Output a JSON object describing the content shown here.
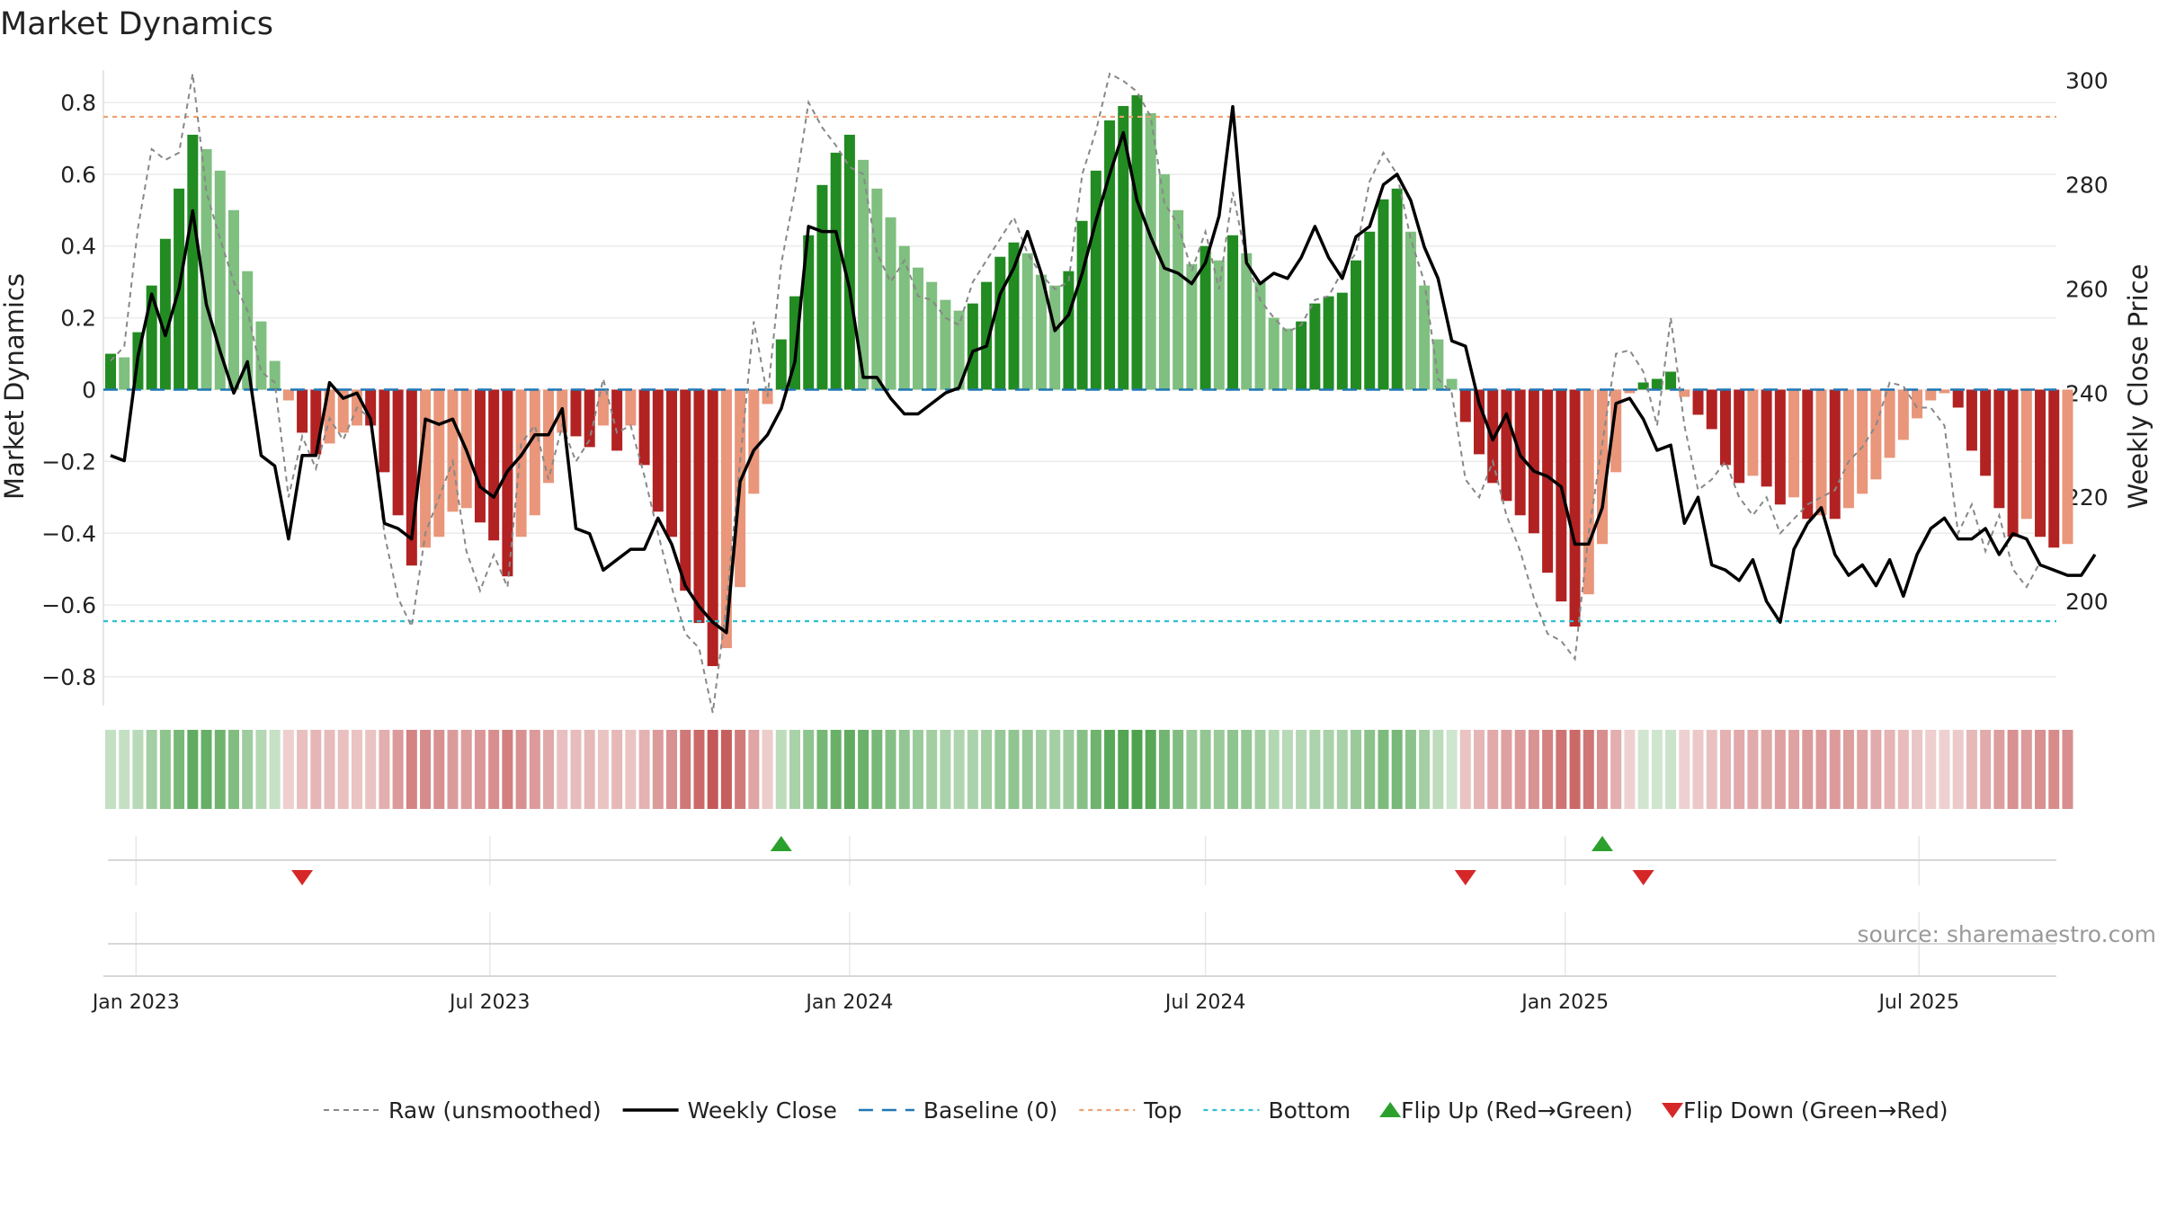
{
  "chart_data": {
    "type": "bar",
    "title": "Market Dynamics",
    "ylabel_left": "Market Dynamics",
    "ylabel_right": "Weekly Close Price",
    "ylim_left": [
      -0.88,
      0.89
    ],
    "ylim_right": [
      180,
      302
    ],
    "yticks_left": [
      {
        "v": 0.8,
        "t": "0.8"
      },
      {
        "v": 0.6,
        "t": "0.6"
      },
      {
        "v": 0.4,
        "t": "0.4"
      },
      {
        "v": 0.2,
        "t": "0.2"
      },
      {
        "v": 0,
        "t": "0"
      },
      {
        "v": -0.2,
        "t": "−0.2"
      },
      {
        "v": -0.4,
        "t": "−0.4"
      },
      {
        "v": -0.6,
        "t": "−0.6"
      },
      {
        "v": -0.8,
        "t": "−0.8"
      }
    ],
    "yticks_right": [
      {
        "v": 300,
        "t": "300"
      },
      {
        "v": 280,
        "t": "280"
      },
      {
        "v": 260,
        "t": "260"
      },
      {
        "v": 240,
        "t": "240"
      },
      {
        "v": 220,
        "t": "220"
      },
      {
        "v": 200,
        "t": "200"
      }
    ],
    "x_start": "2022-12-19",
    "x_ticks": [
      {
        "date": "2023-01-01",
        "t": "Jan 2023"
      },
      {
        "date": "2023-07-01",
        "t": "Jul 2023"
      },
      {
        "date": "2024-01-01",
        "t": "Jan 2024"
      },
      {
        "date": "2024-07-01",
        "t": "Jul 2024"
      },
      {
        "date": "2025-01-01",
        "t": "Jan 2025"
      },
      {
        "date": "2025-07-01",
        "t": "Jul 2025"
      }
    ],
    "top": 0.76,
    "bottom": -0.645,
    "baseline": 0,
    "dynamics": [
      0.1,
      0.09,
      0.16,
      0.29,
      0.42,
      0.56,
      0.71,
      0.67,
      0.61,
      0.5,
      0.33,
      0.19,
      0.08,
      -0.03,
      -0.12,
      -0.18,
      -0.15,
      -0.12,
      -0.1,
      -0.1,
      -0.23,
      -0.35,
      -0.49,
      -0.44,
      -0.41,
      -0.34,
      -0.33,
      -0.37,
      -0.42,
      -0.52,
      -0.41,
      -0.35,
      -0.26,
      -0.12,
      -0.13,
      -0.16,
      -0.1,
      -0.17,
      -0.1,
      -0.21,
      -0.34,
      -0.41,
      -0.56,
      -0.65,
      -0.77,
      -0.72,
      -0.55,
      -0.29,
      -0.04,
      0.14,
      0.26,
      0.43,
      0.57,
      0.66,
      0.71,
      0.64,
      0.56,
      0.48,
      0.4,
      0.34,
      0.3,
      0.25,
      0.22,
      0.24,
      0.3,
      0.37,
      0.41,
      0.38,
      0.32,
      0.29,
      0.33,
      0.47,
      0.61,
      0.75,
      0.79,
      0.82,
      0.77,
      0.6,
      0.5,
      0.35,
      0.4,
      0.36,
      0.43,
      0.38,
      0.3,
      0.2,
      0.17,
      0.19,
      0.24,
      0.26,
      0.27,
      0.36,
      0.44,
      0.53,
      0.56,
      0.44,
      0.29,
      0.14,
      0.03,
      -0.09,
      -0.18,
      -0.26,
      -0.31,
      -0.35,
      -0.4,
      -0.51,
      -0.59,
      -0.66,
      -0.57,
      -0.43,
      -0.23,
      -0.01,
      0.02,
      0.03,
      0.05,
      -0.02,
      -0.07,
      -0.11,
      -0.21,
      -0.26,
      -0.24,
      -0.27,
      -0.32,
      -0.3,
      -0.36,
      -0.35,
      -0.36,
      -0.33,
      -0.29,
      -0.25,
      -0.19,
      -0.14,
      -0.08,
      -0.03,
      -0.01,
      -0.05,
      -0.17,
      -0.24,
      -0.33,
      -0.41,
      -0.36,
      -0.41,
      -0.44,
      -0.43
    ],
    "raw": [
      0.08,
      0.12,
      0.45,
      0.67,
      0.64,
      0.66,
      0.88,
      0.55,
      0.42,
      0.3,
      0.22,
      0.05,
      0.02,
      -0.3,
      -0.13,
      -0.22,
      -0.08,
      -0.14,
      -0.05,
      -0.08,
      -0.4,
      -0.58,
      -0.66,
      -0.4,
      -0.3,
      -0.2,
      -0.45,
      -0.56,
      -0.46,
      -0.55,
      -0.15,
      -0.1,
      -0.25,
      -0.1,
      -0.2,
      -0.14,
      0.03,
      -0.12,
      -0.1,
      -0.24,
      -0.4,
      -0.55,
      -0.68,
      -0.72,
      -0.9,
      -0.6,
      -0.2,
      0.19,
      -0.02,
      0.35,
      0.55,
      0.8,
      0.73,
      0.68,
      0.62,
      0.6,
      0.38,
      0.3,
      0.36,
      0.26,
      0.25,
      0.2,
      0.18,
      0.3,
      0.36,
      0.42,
      0.48,
      0.38,
      0.32,
      0.28,
      0.3,
      0.6,
      0.72,
      0.88,
      0.86,
      0.83,
      0.76,
      0.52,
      0.46,
      0.33,
      0.44,
      0.28,
      0.55,
      0.36,
      0.25,
      0.2,
      0.16,
      0.18,
      0.25,
      0.26,
      0.33,
      0.38,
      0.58,
      0.66,
      0.6,
      0.42,
      0.3,
      0.03,
      -0.01,
      -0.25,
      -0.3,
      -0.2,
      -0.35,
      -0.45,
      -0.58,
      -0.68,
      -0.7,
      -0.75,
      -0.4,
      -0.15,
      0.1,
      0.11,
      0.05,
      -0.1,
      0.2,
      -0.1,
      -0.28,
      -0.25,
      -0.2,
      -0.3,
      -0.35,
      -0.3,
      -0.4,
      -0.36,
      -0.32,
      -0.3,
      -0.28,
      -0.2,
      -0.16,
      -0.1,
      0.02,
      0.01,
      -0.05,
      -0.05,
      -0.1,
      -0.4,
      -0.32,
      -0.45,
      -0.35,
      -0.5,
      -0.55,
      -0.48
    ],
    "close": [
      228,
      227,
      247,
      259,
      251,
      260,
      275,
      257,
      248,
      240,
      246,
      228,
      226,
      212,
      228,
      228,
      242,
      239,
      240,
      235,
      215,
      214,
      212,
      235,
      234,
      235,
      229,
      222,
      220,
      225,
      228,
      232,
      232,
      237,
      214,
      213,
      206,
      208,
      210,
      210,
      216,
      211,
      203,
      199,
      196,
      194,
      223,
      229,
      232,
      237,
      246,
      272,
      271,
      271,
      260,
      243,
      243,
      239,
      236,
      236,
      238,
      240,
      241,
      248,
      249,
      259,
      264,
      271,
      263,
      252,
      255,
      263,
      273,
      282,
      290,
      277,
      270,
      264,
      263,
      261,
      265,
      274,
      295,
      265,
      261,
      263,
      262,
      266,
      272,
      266,
      262,
      270,
      272,
      280,
      282,
      277,
      268,
      262,
      250,
      249,
      238,
      231,
      236,
      228,
      225,
      224,
      222,
      211,
      211,
      218,
      238,
      239,
      235,
      229,
      230,
      215,
      220,
      207,
      206,
      204,
      208,
      200,
      196,
      210,
      215,
      218,
      209,
      205,
      207,
      203,
      208,
      201,
      209,
      214,
      216,
      212,
      212,
      214,
      209,
      213,
      212,
      207,
      206,
      205,
      205,
      209
    ],
    "flips": [
      {
        "week": 14,
        "dir": "down"
      },
      {
        "week": 49,
        "dir": "up"
      },
      {
        "week": 99,
        "dir": "down"
      },
      {
        "week": 109,
        "dir": "up"
      },
      {
        "week": 112,
        "dir": "down"
      }
    ],
    "colors": {
      "strong_up": "#228b22",
      "weak_up": "#7fbf7f",
      "strong_down": "#b22222",
      "weak_down": "#e9967a",
      "raw": "#888888",
      "close": "#000000",
      "baseline": "#1f77b4",
      "top": "#f0a070",
      "bottom": "#30c0d0",
      "flip_up": "#2ca02c",
      "flip_down": "#d62728"
    },
    "legend": [
      {
        "label": "Raw (unsmoothed)",
        "kind": "raw"
      },
      {
        "label": "Weekly Close",
        "kind": "close"
      },
      {
        "label": "Baseline (0)",
        "kind": "baseline"
      },
      {
        "label": "Top",
        "kind": "top"
      },
      {
        "label": "Bottom",
        "kind": "bottom"
      },
      {
        "label": "Flip Up (Red→Green)",
        "kind": "flip_up"
      },
      {
        "label": "Flip Down (Green→Red)",
        "kind": "flip_down"
      }
    ],
    "legend_position": "bottom-center",
    "grid": true
  },
  "source": "source: sharemaestro.com"
}
